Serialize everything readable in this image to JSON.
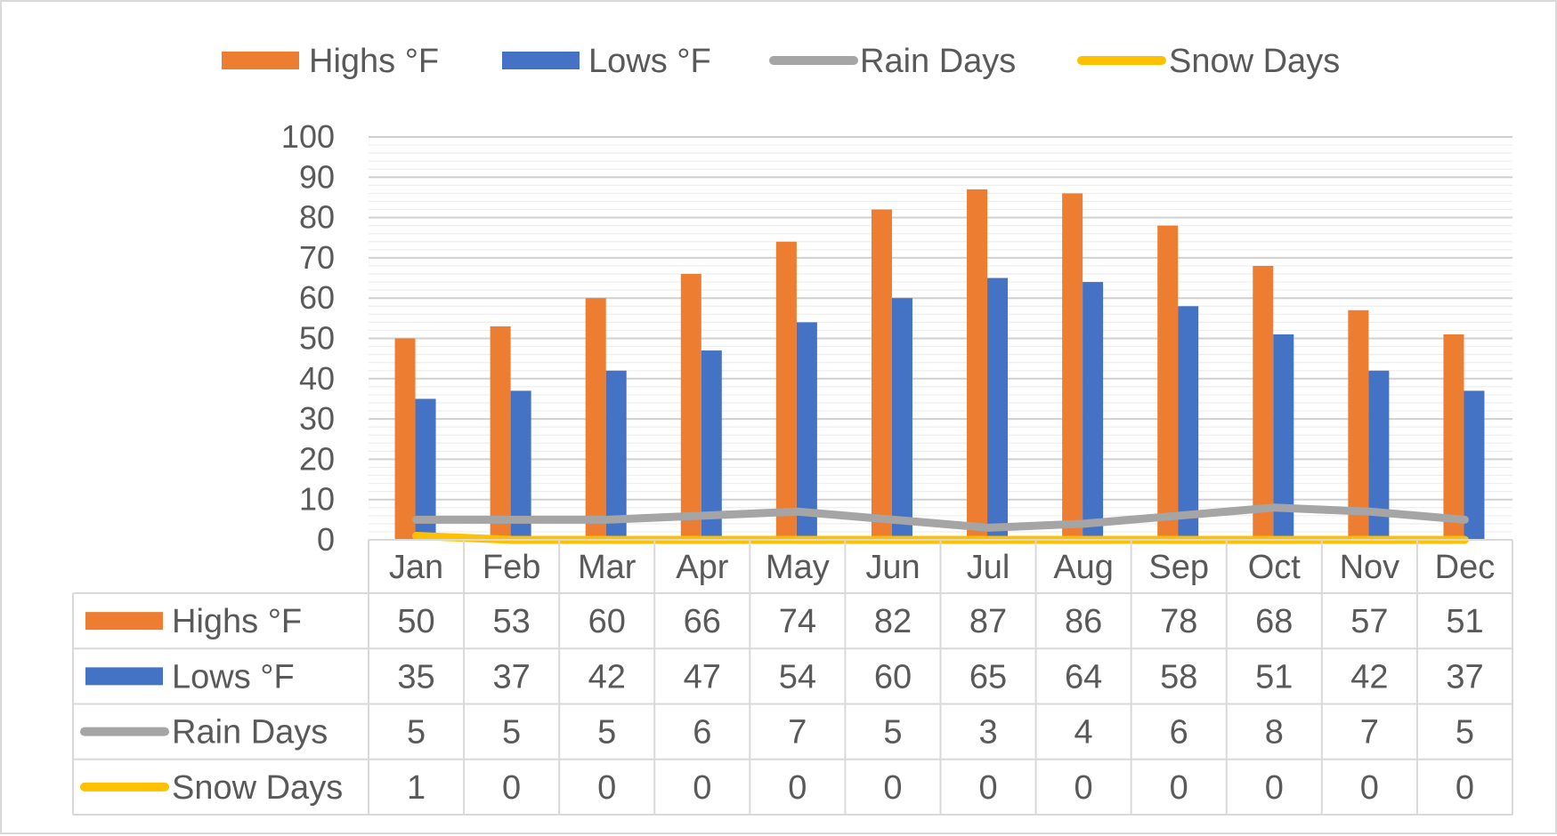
{
  "chart_data": {
    "type": "bar",
    "categories": [
      "Jan",
      "Feb",
      "Mar",
      "Apr",
      "May",
      "Jun",
      "Jul",
      "Aug",
      "Sep",
      "Oct",
      "Nov",
      "Dec"
    ],
    "series": [
      {
        "name": "Highs °F",
        "kind": "bar",
        "color": "#ed7d31",
        "values": [
          50,
          53,
          60,
          66,
          74,
          82,
          87,
          86,
          78,
          68,
          57,
          51
        ]
      },
      {
        "name": "Lows °F",
        "kind": "bar",
        "color": "#4472c4",
        "values": [
          35,
          37,
          42,
          47,
          54,
          60,
          65,
          64,
          58,
          51,
          42,
          37
        ]
      },
      {
        "name": "Rain Days",
        "kind": "line",
        "color": "#a5a5a5",
        "values": [
          5,
          5,
          5,
          6,
          7,
          5,
          3,
          4,
          6,
          8,
          7,
          5
        ]
      },
      {
        "name": "Snow Days",
        "kind": "line",
        "color": "#ffc000",
        "values": [
          1,
          0,
          0,
          0,
          0,
          0,
          0,
          0,
          0,
          0,
          0,
          0
        ]
      }
    ],
    "ylim": [
      0,
      100
    ],
    "yticks": [
      0,
      10,
      20,
      30,
      40,
      50,
      60,
      70,
      80,
      90,
      100
    ],
    "grid": true,
    "legend": "top-center",
    "data_table": true,
    "title": "",
    "xlabel": "",
    "ylabel": ""
  }
}
